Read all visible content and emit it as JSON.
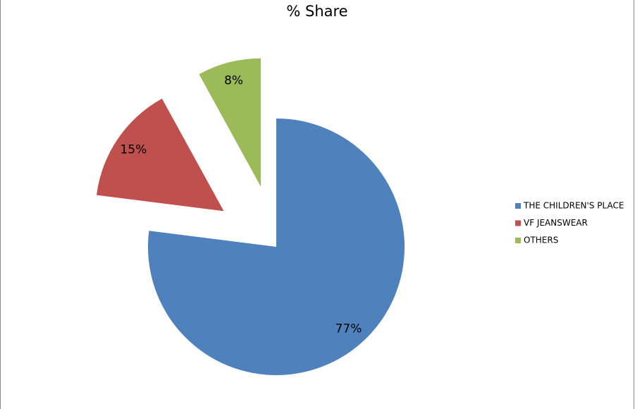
{
  "chart_data": {
    "type": "pie",
    "title": "% Share",
    "categories": [
      "THE CHILDREN'S PLACE",
      "VF JEANSWEAR",
      "OTHERS"
    ],
    "values": [
      77,
      15,
      8
    ],
    "value_labels": [
      "77%",
      "15%",
      "8%"
    ],
    "colors": [
      "#4f81bd",
      "#c0504d",
      "#9bbb59"
    ],
    "legend": "right"
  }
}
